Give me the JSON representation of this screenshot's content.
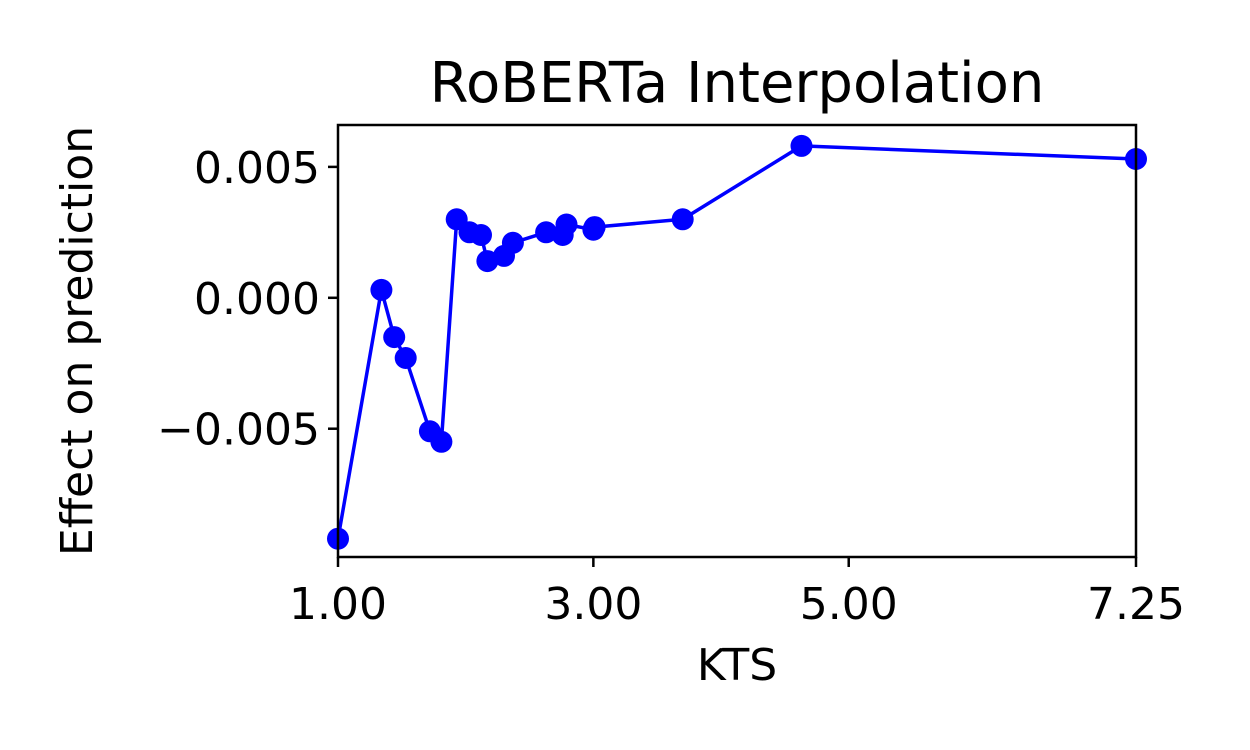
{
  "chart_data": {
    "type": "line",
    "title": "RoBERTa Interpolation",
    "xlabel": "KTS",
    "ylabel": "Effect on prediction",
    "xlim": [
      1.0,
      7.25
    ],
    "ylim": [
      -0.0099,
      0.0066
    ],
    "xticks": [
      1.0,
      3.0,
      5.0,
      7.25
    ],
    "xtick_labels": [
      "1.00",
      "3.00",
      "5.00",
      "7.25"
    ],
    "yticks": [
      0.005,
      0.0,
      -0.005
    ],
    "ytick_labels": [
      "0.005",
      "0.000",
      "−0.005"
    ],
    "grid": false,
    "color": "#0000ff",
    "series": [
      {
        "x": [
          1.0,
          1.34,
          1.44,
          1.53,
          1.72,
          1.81,
          1.93,
          2.03,
          2.12,
          2.17,
          2.3,
          2.37,
          2.63,
          2.76,
          2.79,
          3.0,
          3.01,
          3.7,
          4.63,
          7.25
        ],
        "y": [
          -0.0092,
          0.0003,
          -0.0015,
          -0.0023,
          -0.0051,
          -0.0055,
          0.003,
          0.0025,
          0.0024,
          0.0014,
          0.0016,
          0.0021,
          0.0025,
          0.0024,
          0.0028,
          0.0026,
          0.0027,
          0.003,
          0.0058,
          0.0053
        ]
      }
    ]
  }
}
